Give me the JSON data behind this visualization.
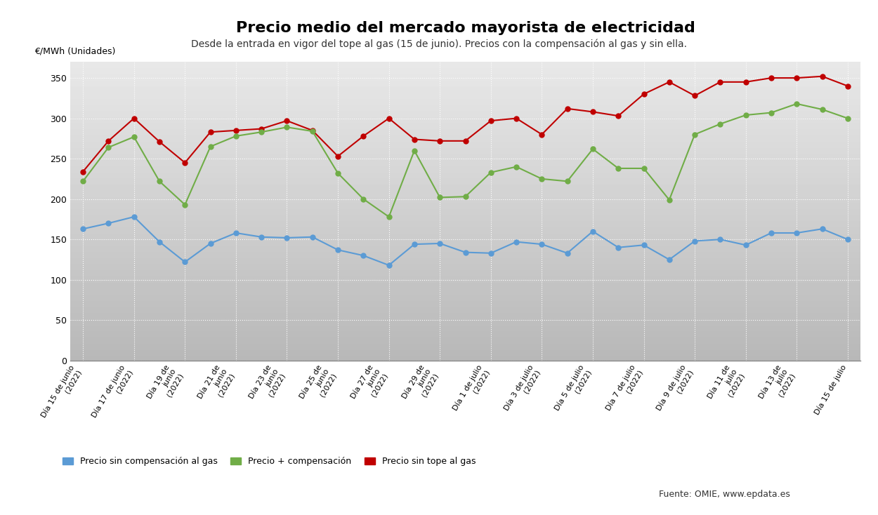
{
  "title": "Precio medio del mercado mayorista de electricidad",
  "subtitle": "Desde la entrada en vigor del tope al gas (15 de junio). Precios con la compensación al gas y sin ella.",
  "ylabel": "€/MWh (Unidades)",
  "tick_positions": [
    0,
    2,
    4,
    6,
    8,
    10,
    12,
    14,
    16,
    18,
    20,
    22,
    24,
    26,
    28,
    30
  ],
  "tick_labels": [
    "Día 15 de junio\n(2022)",
    "Día 17 de junio\n(2022)",
    "Día 19 de\njunio\n(2022)",
    "Día 21 de\njunio\n(2022)",
    "Día 23 de\njunio\n(2022)",
    "Día 25 de\njunio\n(2022)",
    "Día 27 de\njunio\n(2022)",
    "Día 29 de\njunio\n(2022)",
    "Día 1 de julio\n(2022)",
    "Día 3 de julio\n(2022)",
    "Día 5 de julio\n(2022)",
    "Día 7 de julio\n(2022)",
    "Día 9 de julio\n(2022)",
    "Día 11 de\njulio\n(2022)",
    "Día 13 de\njulio\n(2022)",
    "Día 15 de julio"
  ],
  "price_sin_comp": [
    163,
    170,
    178,
    147,
    122,
    145,
    158,
    153,
    152,
    153,
    137,
    130,
    118,
    144,
    145,
    134,
    133,
    147,
    144,
    133,
    160,
    140,
    143,
    125,
    148,
    150,
    143,
    158,
    158,
    163,
    150
  ],
  "price_plus_comp": [
    222,
    264,
    277,
    222,
    193,
    265,
    278,
    283,
    289,
    284,
    232,
    200,
    178,
    260,
    202,
    203,
    233,
    240,
    225,
    222,
    262,
    238,
    238,
    199,
    280,
    293,
    304,
    307,
    318,
    311,
    300
  ],
  "price_sin_tope": [
    234,
    272,
    300,
    271,
    245,
    283,
    285,
    287,
    297,
    285,
    253,
    278,
    300,
    274,
    272,
    272,
    297,
    300,
    280,
    312,
    308,
    303,
    330,
    345,
    328,
    345,
    345,
    350,
    350,
    352,
    340
  ],
  "color_sin_comp": "#5b9bd5",
  "color_plus_comp": "#70ad47",
  "color_sin_tope": "#c00000",
  "ylim": [
    0,
    370
  ],
  "yticks": [
    0,
    50,
    100,
    150,
    200,
    250,
    300,
    350
  ],
  "legend_labels": [
    "Precio sin compensación al gas",
    "Precio + compensación",
    "Precio sin tope al gas"
  ],
  "source_text": "Fuente: OMIE, www.epdata.es",
  "bg_color": "#ffffff",
  "plot_bg_gradient_top": "#e8e8e8",
  "plot_bg_gradient_bottom": "#c8c8c8",
  "marker_size": 5,
  "line_width": 1.5
}
